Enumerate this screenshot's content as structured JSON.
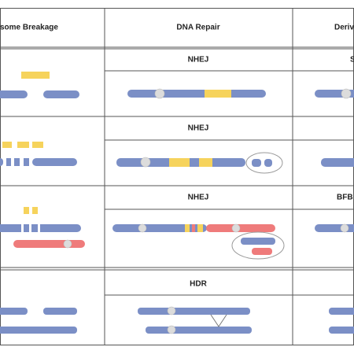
{
  "table": {
    "header": [
      "some Breakage",
      "DNA Repair",
      "Deriv"
    ],
    "rows": [
      {
        "repair": "NHEJ",
        "derived": "S"
      },
      {
        "repair": "NHEJ"
      },
      {
        "repair": "NHEJ",
        "derived": "BFB"
      },
      {
        "repair": "HDR"
      }
    ]
  }
}
